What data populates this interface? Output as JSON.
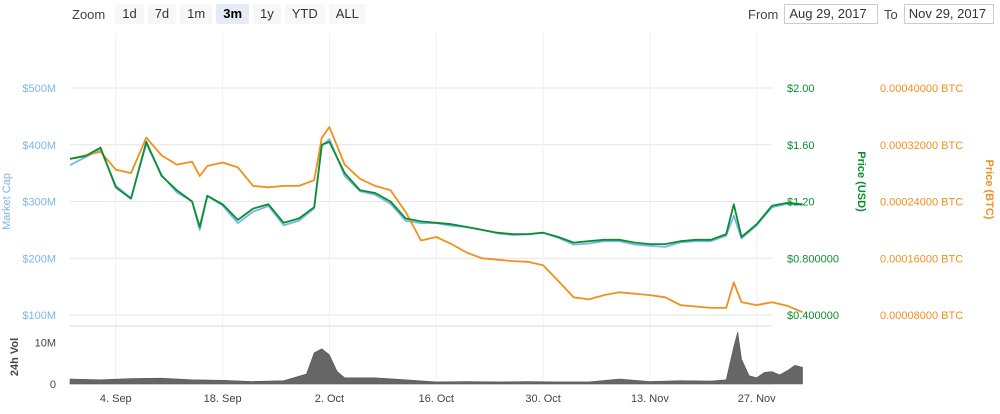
{
  "toolbar": {
    "zoom_label": "Zoom",
    "buttons": [
      "1d",
      "7d",
      "1m",
      "3m",
      "1y",
      "YTD",
      "ALL"
    ],
    "active": "3m"
  },
  "range": {
    "from_label": "From",
    "from_value": "Aug 29, 2017",
    "to_label": "To",
    "to_value": "Nov 29, 2017"
  },
  "colors": {
    "market_cap": "#7cb5ec",
    "price_usd": "#0a8f2e",
    "price_btc": "#f0901d",
    "volume": "#666666",
    "grid": "#e6e6e6"
  },
  "chart_data": {
    "type": "line",
    "x_ticks": [
      "4. Sep",
      "18. Sep",
      "2. Oct",
      "16. Oct",
      "30. Oct",
      "13. Nov",
      "27. Nov"
    ],
    "x_tick_days": [
      6,
      20,
      34,
      48,
      62,
      76,
      90
    ],
    "x_range_days": [
      0,
      92
    ],
    "axes": {
      "market_cap": {
        "label": "Market Cap",
        "ticks": [
          "$100M",
          "$200M",
          "$300M",
          "$400M",
          "$500M"
        ],
        "tick_values": [
          100,
          200,
          300,
          400,
          500
        ],
        "range": [
          100,
          500
        ]
      },
      "price_usd": {
        "label": "Price (USD)",
        "ticks": [
          "$0.400000",
          "$0.800000",
          "$1.20",
          "$1.60",
          "$2.00"
        ],
        "tick_values": [
          0.4,
          0.8,
          1.2,
          1.6,
          2.0
        ],
        "range": [
          0.4,
          2.0
        ]
      },
      "price_btc": {
        "label": "Price (BTC)",
        "ticks": [
          "0.00008000 BTC",
          "0.00016000 BTC",
          "0.00024000 BTC",
          "0.00032000 BTC",
          "0.00040000 BTC"
        ],
        "tick_values": [
          8e-05,
          0.00016,
          0.00024,
          0.00032,
          0.0004
        ],
        "range": [
          8e-05,
          0.0004
        ]
      },
      "volume": {
        "label": "24h Vol",
        "ticks": [
          "0",
          "10M"
        ],
        "tick_values": [
          0,
          10
        ],
        "range": [
          0,
          13
        ]
      }
    },
    "series": [
      {
        "name": "Market Cap",
        "axis": "market_cap",
        "points": [
          [
            0,
            364
          ],
          [
            2,
            378
          ],
          [
            4,
            392
          ],
          [
            6,
            328
          ],
          [
            8,
            306
          ],
          [
            10,
            402
          ],
          [
            12,
            347
          ],
          [
            14,
            316
          ],
          [
            16,
            300
          ],
          [
            17,
            250
          ],
          [
            18,
            310
          ],
          [
            20,
            293
          ],
          [
            22,
            262
          ],
          [
            24,
            282
          ],
          [
            26,
            292
          ],
          [
            28,
            258
          ],
          [
            30,
            266
          ],
          [
            32,
            288
          ],
          [
            33,
            398
          ],
          [
            34,
            410
          ],
          [
            36,
            345
          ],
          [
            38,
            318
          ],
          [
            40,
            312
          ],
          [
            42,
            296
          ],
          [
            44,
            266
          ],
          [
            46,
            262
          ],
          [
            48,
            262
          ],
          [
            50,
            257
          ],
          [
            52,
            255
          ],
          [
            54,
            250
          ],
          [
            56,
            244
          ],
          [
            58,
            241
          ],
          [
            60,
            242
          ],
          [
            62,
            245
          ],
          [
            64,
            236
          ],
          [
            66,
            224
          ],
          [
            68,
            226
          ],
          [
            70,
            230
          ],
          [
            72,
            230
          ],
          [
            74,
            224
          ],
          [
            76,
            222
          ],
          [
            78,
            220
          ],
          [
            80,
            228
          ],
          [
            82,
            230
          ],
          [
            84,
            230
          ],
          [
            86,
            240
          ],
          [
            87,
            275
          ],
          [
            88,
            235
          ],
          [
            90,
            258
          ],
          [
            92,
            290
          ],
          [
            94,
            296
          ],
          [
            96,
            294
          ]
        ]
      },
      {
        "name": "Price (USD)",
        "axis": "price_usd",
        "points": [
          [
            0,
            1.5
          ],
          [
            2,
            1.52
          ],
          [
            4,
            1.58
          ],
          [
            6,
            1.3
          ],
          [
            8,
            1.22
          ],
          [
            10,
            1.62
          ],
          [
            12,
            1.38
          ],
          [
            14,
            1.28
          ],
          [
            16,
            1.2
          ],
          [
            17,
            1.02
          ],
          [
            18,
            1.24
          ],
          [
            20,
            1.18
          ],
          [
            22,
            1.07
          ],
          [
            24,
            1.15
          ],
          [
            26,
            1.18
          ],
          [
            28,
            1.05
          ],
          [
            30,
            1.08
          ],
          [
            32,
            1.16
          ],
          [
            33,
            1.6
          ],
          [
            34,
            1.62
          ],
          [
            36,
            1.4
          ],
          [
            38,
            1.28
          ],
          [
            40,
            1.26
          ],
          [
            42,
            1.2
          ],
          [
            44,
            1.08
          ],
          [
            46,
            1.06
          ],
          [
            48,
            1.05
          ],
          [
            50,
            1.04
          ],
          [
            52,
            1.02
          ],
          [
            54,
            1.0
          ],
          [
            56,
            0.98
          ],
          [
            58,
            0.97
          ],
          [
            60,
            0.97
          ],
          [
            62,
            0.98
          ],
          [
            64,
            0.95
          ],
          [
            66,
            0.91
          ],
          [
            68,
            0.92
          ],
          [
            70,
            0.93
          ],
          [
            72,
            0.93
          ],
          [
            74,
            0.91
          ],
          [
            76,
            0.9
          ],
          [
            78,
            0.9
          ],
          [
            80,
            0.92
          ],
          [
            82,
            0.93
          ],
          [
            84,
            0.93
          ],
          [
            86,
            0.97
          ],
          [
            87,
            1.18
          ],
          [
            88,
            0.95
          ],
          [
            90,
            1.04
          ],
          [
            92,
            1.17
          ],
          [
            94,
            1.19
          ],
          [
            96,
            1.18
          ]
        ]
      },
      {
        "name": "Price (BTC)",
        "axis": "price_btc",
        "points": [
          [
            0,
            0.0003
          ],
          [
            2,
            0.000305
          ],
          [
            4,
            0.00031
          ],
          [
            6,
            0.000285
          ],
          [
            8,
            0.00028
          ],
          [
            10,
            0.00033
          ],
          [
            12,
            0.000305
          ],
          [
            14,
            0.000292
          ],
          [
            16,
            0.000296
          ],
          [
            17,
            0.000276
          ],
          [
            18,
            0.00029
          ],
          [
            20,
            0.000295
          ],
          [
            22,
            0.000288
          ],
          [
            24,
            0.000262
          ],
          [
            26,
            0.00026
          ],
          [
            28,
            0.000262
          ],
          [
            30,
            0.000262
          ],
          [
            32,
            0.00027
          ],
          [
            33,
            0.00033
          ],
          [
            34,
            0.000345
          ],
          [
            36,
            0.000292
          ],
          [
            38,
            0.000272
          ],
          [
            40,
            0.000262
          ],
          [
            42,
            0.000256
          ],
          [
            44,
            0.000225
          ],
          [
            46,
            0.000185
          ],
          [
            48,
            0.00019
          ],
          [
            50,
            0.00018
          ],
          [
            52,
            0.000168
          ],
          [
            54,
            0.00016
          ],
          [
            56,
            0.000158
          ],
          [
            58,
            0.000156
          ],
          [
            60,
            0.000155
          ],
          [
            62,
            0.00015
          ],
          [
            64,
            0.000128
          ],
          [
            66,
            0.000105
          ],
          [
            68,
            0.000102
          ],
          [
            70,
            0.000108
          ],
          [
            72,
            0.000112
          ],
          [
            74,
            0.00011
          ],
          [
            76,
            0.000108
          ],
          [
            78,
            0.000105
          ],
          [
            80,
            9.4e-05
          ],
          [
            82,
            9.2e-05
          ],
          [
            84,
            9e-05
          ],
          [
            86,
            9e-05
          ],
          [
            87,
            0.000126
          ],
          [
            88,
            9.8e-05
          ],
          [
            90,
            9.4e-05
          ],
          [
            92,
            9.8e-05
          ],
          [
            94,
            9.3e-05
          ],
          [
            96,
            8.4e-05
          ]
        ]
      },
      {
        "name": "24h Vol",
        "axis": "volume",
        "points": [
          [
            0,
            1.2
          ],
          [
            4,
            1.0
          ],
          [
            8,
            1.3
          ],
          [
            12,
            1.4
          ],
          [
            16,
            1.0
          ],
          [
            20,
            0.9
          ],
          [
            24,
            0.6
          ],
          [
            28,
            0.8
          ],
          [
            31,
            2.4
          ],
          [
            32,
            7.5
          ],
          [
            33,
            8.5
          ],
          [
            34,
            7.0
          ],
          [
            35,
            3.0
          ],
          [
            36,
            1.5
          ],
          [
            40,
            1.5
          ],
          [
            44,
            1.0
          ],
          [
            48,
            0.5
          ],
          [
            52,
            0.6
          ],
          [
            56,
            0.5
          ],
          [
            60,
            0.6
          ],
          [
            64,
            0.5
          ],
          [
            68,
            0.5
          ],
          [
            72,
            1.2
          ],
          [
            74,
            0.9
          ],
          [
            76,
            0.6
          ],
          [
            80,
            0.8
          ],
          [
            84,
            0.7
          ],
          [
            86,
            1.0
          ],
          [
            87,
            9.0
          ],
          [
            87.5,
            12.5
          ],
          [
            88,
            6.0
          ],
          [
            89,
            2.0
          ],
          [
            90,
            1.5
          ],
          [
            91,
            2.8
          ],
          [
            92,
            3.0
          ],
          [
            93,
            2.2
          ],
          [
            94,
            3.2
          ],
          [
            95,
            4.5
          ],
          [
            96,
            4.0
          ]
        ]
      }
    ]
  }
}
